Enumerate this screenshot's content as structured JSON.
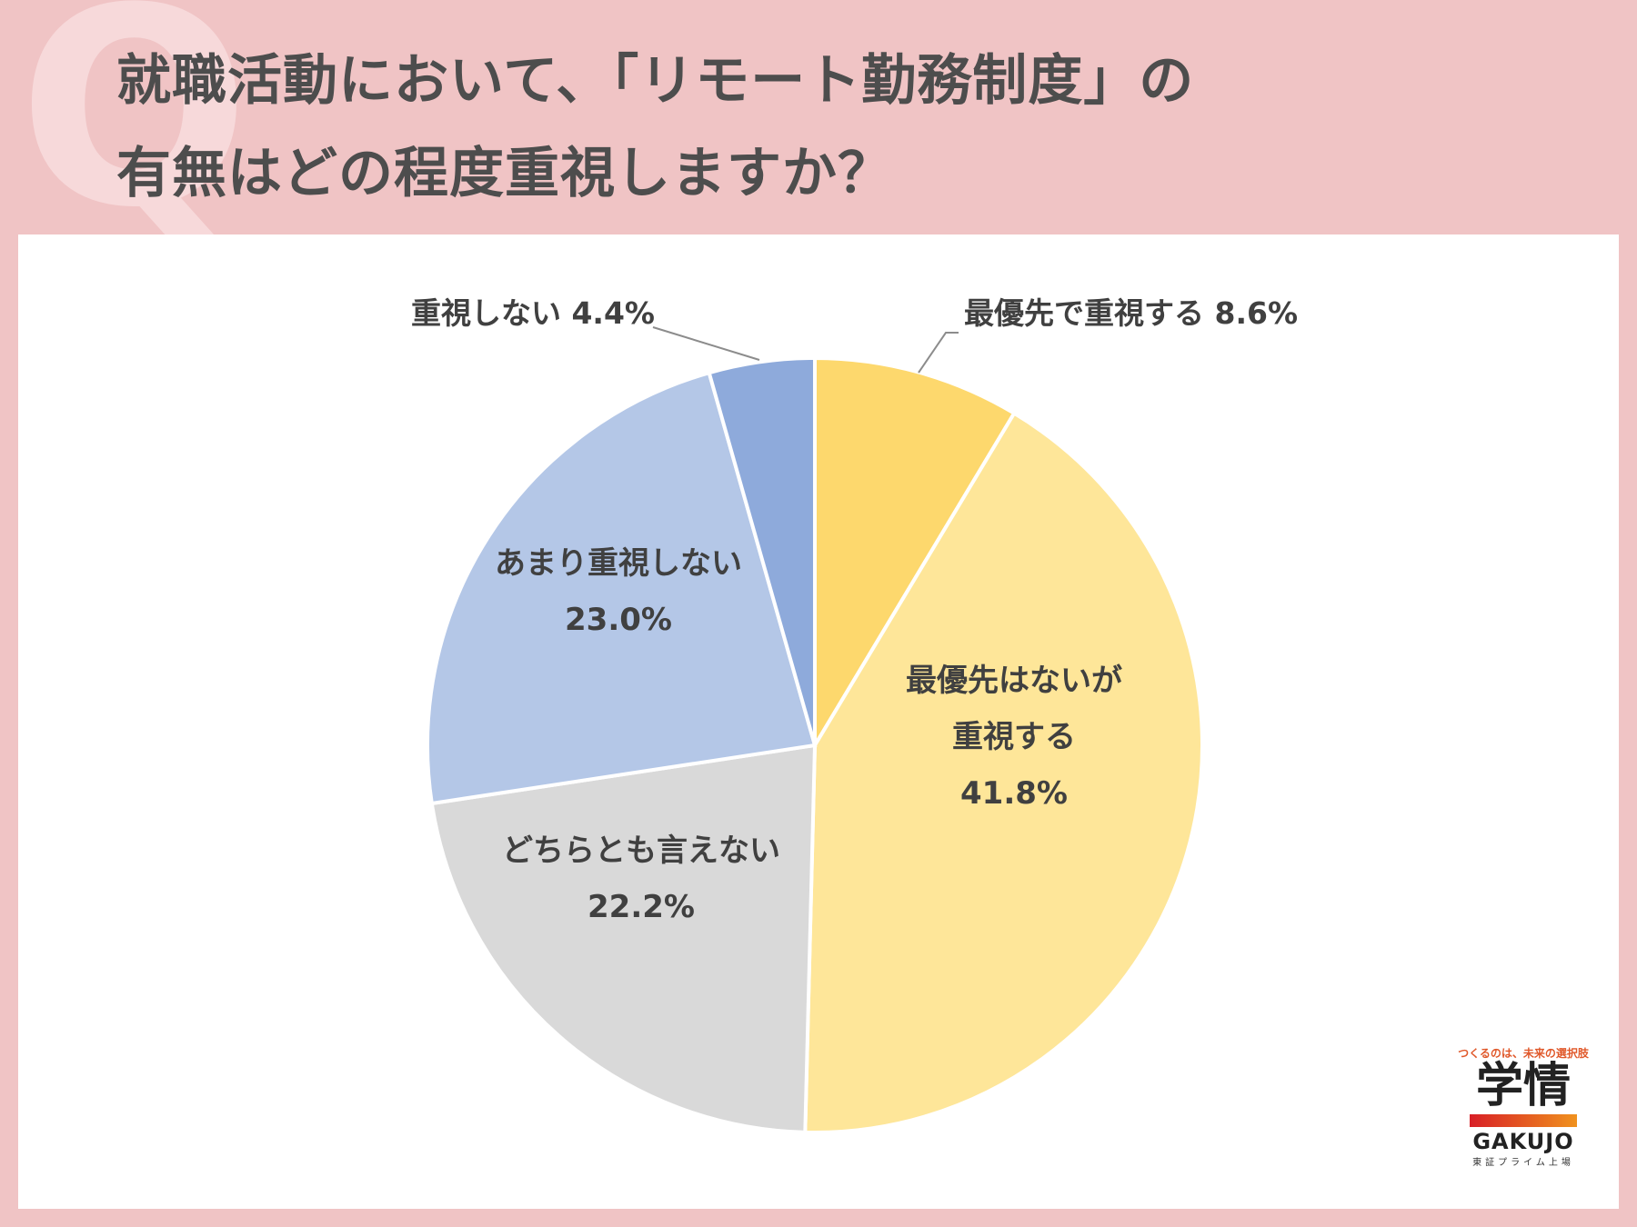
{
  "header": {
    "q_letter": "Q",
    "title_line1": "就職活動において、「リモート勤務制度」の",
    "title_line2": "有無はどの程度重視しますか？"
  },
  "chart_data": {
    "type": "pie",
    "start_angle_deg": 0,
    "direction": "clockwise",
    "slices": [
      {
        "name": "最優先で重視する",
        "value": 8.6,
        "label_lines": [
          "最優先で重視する 8.6%"
        ],
        "color": "#fdd86d"
      },
      {
        "name": "最優先はないが重視する",
        "value": 41.8,
        "label_lines": [
          "最優先はないが",
          "重視する",
          "41.8%"
        ],
        "color": "#fee699"
      },
      {
        "name": "どちらとも言えない",
        "value": 22.2,
        "label_lines": [
          "どちらとも言えない",
          "22.2%"
        ],
        "color": "#d9d9d9"
      },
      {
        "name": "あまり重視しない",
        "value": 23.0,
        "label_lines": [
          "あまり重視しない",
          "23.0%"
        ],
        "color": "#b4c7e7"
      },
      {
        "name": "重視しない",
        "value": 4.4,
        "label_lines": [
          "重視しない 4.4%"
        ],
        "color": "#8eaadb"
      }
    ]
  },
  "logo": {
    "tagline": "つくるのは、未来の選択肢",
    "mark": "学情",
    "name_en": "GAKUJO",
    "sub": "東証プライム上場"
  }
}
